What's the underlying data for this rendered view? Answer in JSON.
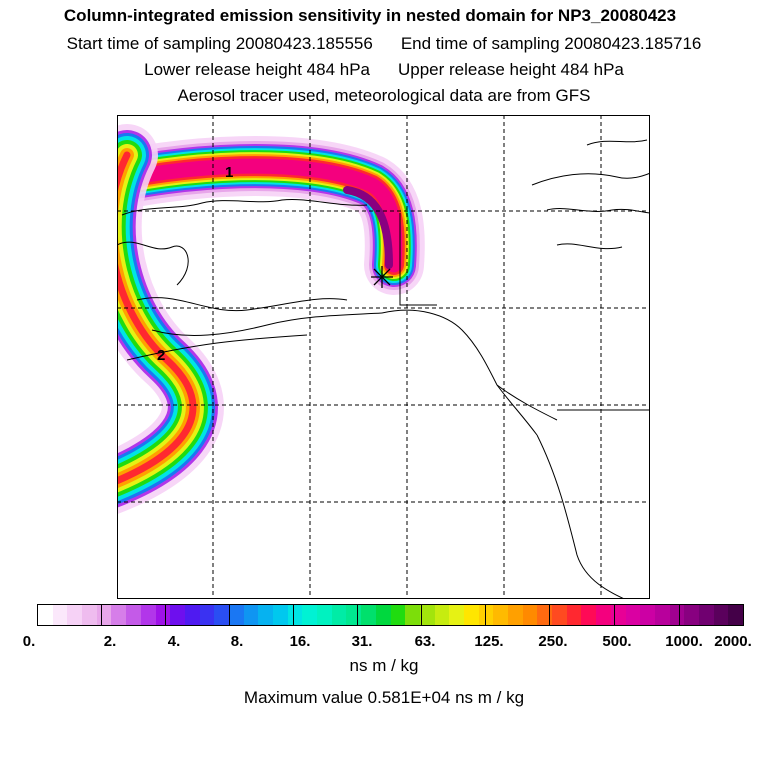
{
  "header": {
    "title": "Column-integrated emission sensitivity in nested domain for NP3_20080423",
    "start_time": "Start time of sampling 20080423.185556",
    "end_time": "End time of sampling 20080423.185716",
    "lower_height": "Lower release height  484 hPa",
    "upper_height": "Upper release height  484 hPa",
    "tracer_note": "Aerosol tracer used, meteorological data are from GFS"
  },
  "map": {
    "markers": [
      "1",
      "2"
    ],
    "release_point_icon": "asterisk-release-marker",
    "gridlines": "dashed"
  },
  "legend": {
    "tick_labels": [
      "0.",
      "2.",
      "4.",
      "8.",
      "16.",
      "31.",
      "63.",
      "125.",
      "250.",
      "500.",
      "1000.",
      "2000."
    ],
    "colors": [
      "#ffffff",
      "#fbe8fb",
      "#f6d2f6",
      "#efbcef",
      "#e8a6ea",
      "#d67ee9",
      "#c45ae8",
      "#b236ea",
      "#9f12e8",
      "#6e0fee",
      "#4f1af1",
      "#3a32f2",
      "#2a4ef3",
      "#1a77f3",
      "#0f95f2",
      "#06b2f0",
      "#00c8ee",
      "#00e4e4",
      "#00f2d4",
      "#00f2c0",
      "#00eca6",
      "#00e890",
      "#00e06c",
      "#00d83e",
      "#20dc10",
      "#7cde0a",
      "#a2e40c",
      "#c6ec10",
      "#e6f214",
      "#ffe600",
      "#ffd000",
      "#ffba00",
      "#ffa000",
      "#ff8a00",
      "#ff6a10",
      "#ff4a20",
      "#ff2830",
      "#ff0a56",
      "#f4007e",
      "#e80096",
      "#da00a2",
      "#cc00a4",
      "#b8009c",
      "#a00090",
      "#880080",
      "#700070",
      "#5a005c",
      "#440048"
    ],
    "units": "ns m / kg",
    "max_value": "Maximum value  0.581E+04 ns m / kg"
  }
}
